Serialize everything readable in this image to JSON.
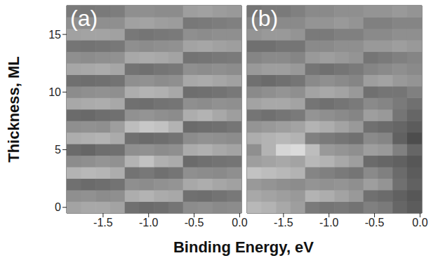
{
  "chart_data": [
    {
      "type": "heatmap",
      "title": "(a)",
      "xlabel": "Binding Energy, eV",
      "ylabel": "Thickness, ML",
      "x": [
        -1.82,
        -1.66,
        -1.5,
        -1.34,
        -1.18,
        -1.02,
        -0.86,
        -0.7,
        -0.54,
        -0.38,
        -0.22,
        -0.06
      ],
      "y": [
        0,
        1,
        2,
        3,
        4,
        5,
        6,
        7,
        8,
        9,
        10,
        11,
        12,
        13,
        14,
        15,
        16,
        17
      ],
      "values": [
        [
          64,
          66,
          66,
          64,
          44,
          42,
          43,
          46,
          55,
          56,
          54,
          55
        ],
        [
          56,
          57,
          55,
          56,
          68,
          70,
          67,
          66,
          44,
          43,
          45,
          47
        ],
        [
          44,
          42,
          43,
          45,
          56,
          55,
          57,
          58,
          66,
          68,
          65,
          63
        ],
        [
          70,
          72,
          71,
          68,
          45,
          47,
          44,
          46,
          56,
          55,
          54,
          56
        ],
        [
          55,
          56,
          58,
          57,
          70,
          76,
          69,
          67,
          42,
          44,
          45,
          46
        ],
        [
          42,
          40,
          43,
          44,
          56,
          57,
          55,
          56,
          67,
          69,
          66,
          64
        ],
        [
          68,
          69,
          70,
          67,
          44,
          42,
          43,
          45,
          55,
          57,
          56,
          55
        ],
        [
          56,
          57,
          56,
          62,
          74,
          78,
          76,
          70,
          42,
          43,
          44,
          46
        ],
        [
          42,
          41,
          43,
          44,
          57,
          58,
          56,
          55,
          68,
          70,
          66,
          62
        ],
        [
          66,
          67,
          68,
          66,
          44,
          43,
          45,
          46,
          56,
          55,
          57,
          56
        ],
        [
          55,
          56,
          57,
          56,
          68,
          70,
          69,
          66,
          43,
          44,
          45,
          47
        ],
        [
          44,
          43,
          44,
          45,
          56,
          57,
          55,
          56,
          66,
          67,
          65,
          63
        ],
        [
          65,
          66,
          67,
          65,
          45,
          44,
          46,
          47,
          56,
          55,
          56,
          55
        ],
        [
          56,
          55,
          56,
          57,
          66,
          67,
          66,
          64,
          45,
          46,
          47,
          48
        ],
        [
          46,
          45,
          46,
          47,
          56,
          55,
          56,
          57,
          64,
          65,
          63,
          62
        ],
        [
          63,
          64,
          64,
          63,
          47,
          46,
          47,
          48,
          56,
          55,
          56,
          56
        ],
        [
          56,
          55,
          56,
          56,
          63,
          64,
          62,
          61,
          47,
          48,
          49,
          50
        ],
        [
          48,
          47,
          48,
          49,
          56,
          56,
          55,
          55,
          62,
          63,
          61,
          60
        ]
      ],
      "zlim": [
        0,
        100
      ],
      "xlim": [
        -1.9,
        0.02
      ],
      "ylim": [
        -0.5,
        17.5
      ],
      "xticks": [
        -1.5,
        {
          "value": -1,
          "label": "-1.0"
        },
        -0.5,
        {
          "value": 0,
          "label": "0.0"
        }
      ],
      "yticks": [
        0,
        5,
        10,
        15
      ]
    },
    {
      "type": "heatmap",
      "title": "(b)",
      "tick_labels": "x",
      "x": [
        -1.82,
        -1.66,
        -1.5,
        -1.34,
        -1.18,
        -1.02,
        -0.86,
        -0.7,
        -0.54,
        -0.38,
        -0.22,
        -0.06
      ],
      "y": [
        0,
        1,
        2,
        3,
        4,
        5,
        6,
        7,
        8,
        9,
        10,
        11,
        12,
        13,
        14,
        15,
        16,
        17
      ],
      "values": [
        [
          72,
          70,
          66,
          62,
          48,
          46,
          47,
          45,
          50,
          48,
          40,
          36
        ],
        [
          66,
          64,
          62,
          60,
          70,
          68,
          64,
          60,
          44,
          42,
          38,
          34
        ],
        [
          60,
          58,
          56,
          55,
          58,
          57,
          58,
          56,
          62,
          58,
          44,
          38
        ],
        [
          76,
          74,
          72,
          70,
          52,
          50,
          48,
          46,
          54,
          50,
          42,
          36
        ],
        [
          62,
          64,
          66,
          64,
          72,
          70,
          66,
          62,
          42,
          40,
          38,
          34
        ],
        [
          56,
          70,
          84,
          86,
          74,
          60,
          58,
          56,
          62,
          60,
          50,
          40
        ],
        [
          68,
          70,
          72,
          70,
          50,
          48,
          46,
          44,
          54,
          52,
          38,
          30
        ],
        [
          58,
          60,
          62,
          64,
          70,
          68,
          64,
          60,
          44,
          42,
          40,
          36
        ],
        [
          46,
          44,
          46,
          48,
          58,
          56,
          54,
          52,
          62,
          60,
          46,
          40
        ],
        [
          64,
          66,
          66,
          64,
          46,
          44,
          46,
          48,
          54,
          52,
          48,
          44
        ],
        [
          54,
          56,
          58,
          56,
          64,
          66,
          64,
          60,
          44,
          46,
          46,
          50
        ],
        [
          44,
          42,
          44,
          46,
          54,
          56,
          54,
          52,
          62,
          64,
          60,
          58
        ],
        [
          60,
          62,
          62,
          60,
          46,
          44,
          46,
          48,
          52,
          54,
          56,
          54
        ],
        [
          52,
          54,
          54,
          52,
          60,
          62,
          60,
          58,
          46,
          48,
          50,
          52
        ],
        [
          44,
          44,
          46,
          46,
          54,
          54,
          56,
          56,
          60,
          60,
          62,
          60
        ],
        [
          58,
          60,
          60,
          58,
          48,
          48,
          50,
          50,
          54,
          54,
          56,
          56
        ],
        [
          52,
          52,
          54,
          54,
          58,
          58,
          60,
          58,
          50,
          50,
          52,
          52
        ],
        [
          46,
          48,
          48,
          50,
          54,
          54,
          56,
          56,
          58,
          58,
          60,
          58
        ]
      ],
      "zlim": [
        0,
        100
      ],
      "xlim": [
        -1.9,
        0.02
      ],
      "ylim": [
        -0.5,
        17.5
      ],
      "xticks": [
        -1.5,
        {
          "value": -1,
          "label": "-1.0"
        },
        -0.5,
        {
          "value": 0,
          "label": "0.0"
        }
      ],
      "yticks": [
        0,
        5,
        10,
        15
      ]
    }
  ]
}
